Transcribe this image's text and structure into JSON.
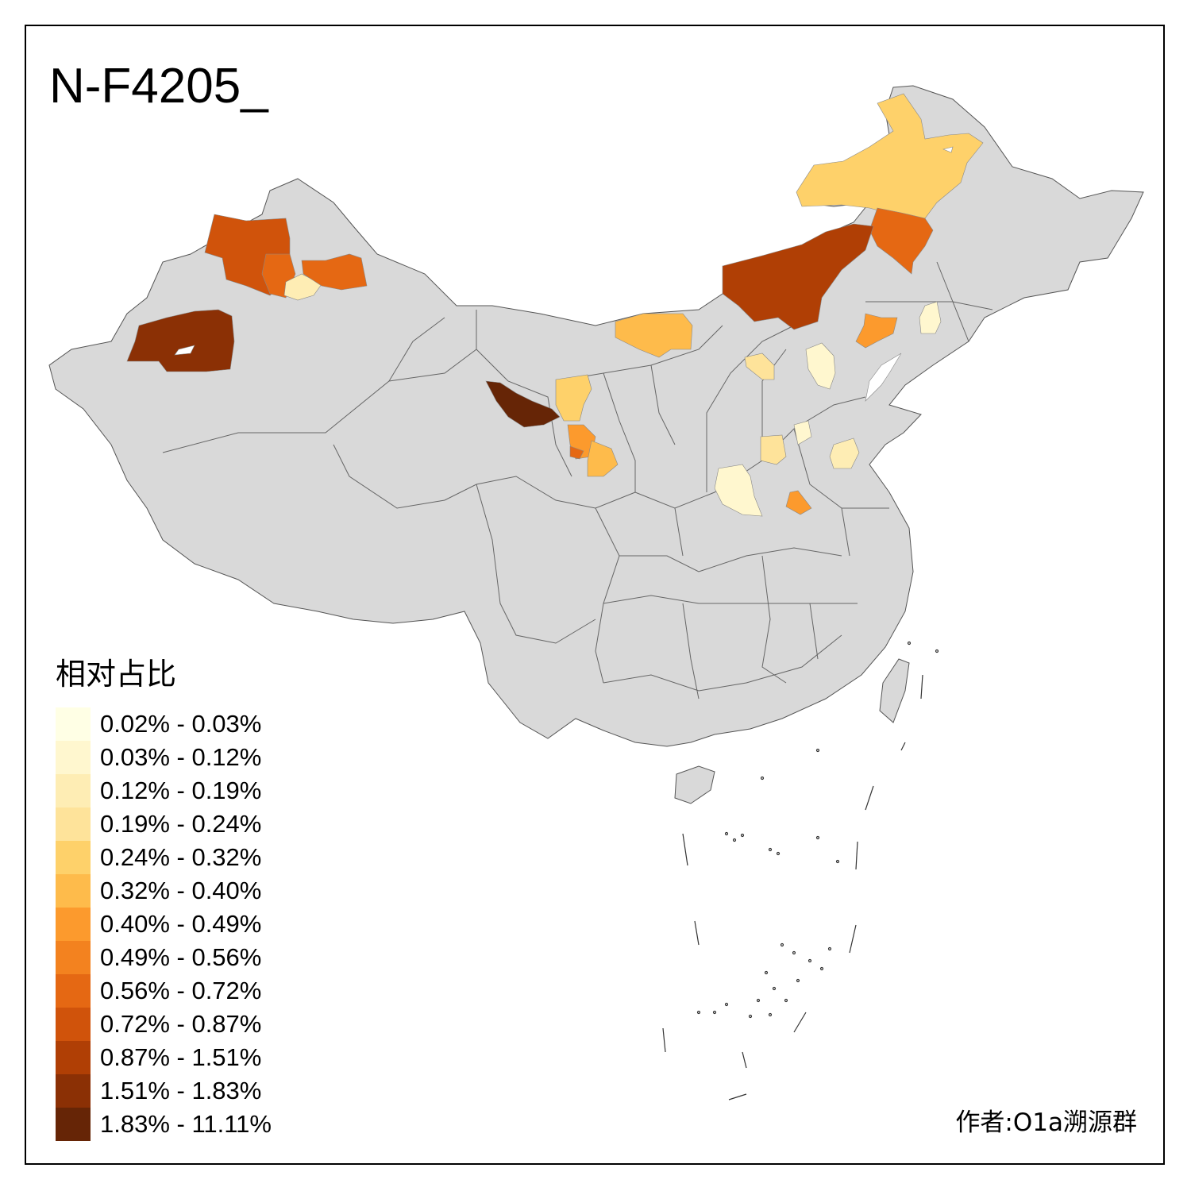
{
  "title": "N-F4205_",
  "legend": {
    "title": "相对占比",
    "items": [
      {
        "label": "0.02% - 0.03%",
        "color": "#ffffe5"
      },
      {
        "label": "0.03% - 0.12%",
        "color": "#fff7cf"
      },
      {
        "label": "0.12% - 0.19%",
        "color": "#feedb4"
      },
      {
        "label": "0.19% - 0.24%",
        "color": "#fee39a"
      },
      {
        "label": "0.24% - 0.32%",
        "color": "#fed16a"
      },
      {
        "label": "0.32% - 0.40%",
        "color": "#febb4b"
      },
      {
        "label": "0.40% - 0.49%",
        "color": "#fc9a2d"
      },
      {
        "label": "0.49% - 0.56%",
        "color": "#f3821f"
      },
      {
        "label": "0.56% - 0.72%",
        "color": "#e56813"
      },
      {
        "label": "0.72% - 0.87%",
        "color": "#d0530b"
      },
      {
        "label": "0.87% - 1.51%",
        "color": "#b03f05"
      },
      {
        "label": "1.51% - 1.83%",
        "color": "#8b3005"
      },
      {
        "label": "1.83% - 11.11%",
        "color": "#662506"
      }
    ]
  },
  "author": "作者:O1a溯源群",
  "colors": {
    "no_data": "#d9d9d9",
    "border": "#555555"
  }
}
